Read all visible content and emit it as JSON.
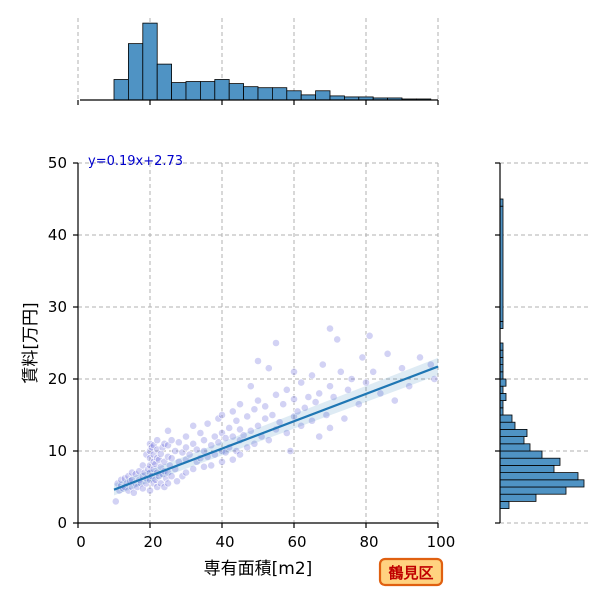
{
  "chart_data": {
    "type": "scatter",
    "title": "",
    "xlabel": "専有面積[m2]",
    "ylabel": "賃料[万円]",
    "xlim": [
      0,
      100
    ],
    "ylim": [
      0,
      50
    ],
    "xticks": [
      0,
      20,
      40,
      60,
      80,
      100
    ],
    "yticks": [
      0,
      10,
      20,
      30,
      40,
      50
    ],
    "grid": true,
    "regression": {
      "equation": "y=0.19x+2.73",
      "slope": 0.19,
      "intercept": 2.73,
      "x_range": [
        10,
        100
      ]
    },
    "ward_label": "鶴見区",
    "colors": {
      "points": "#5c5cd6",
      "regression": "#1f77b4",
      "hist": "#4f93c4",
      "equation": "#0000cc",
      "badge_fill": "#ffd280",
      "badge_border": "#e06010",
      "badge_text": "#c00000"
    },
    "points": [
      [
        10.5,
        3.0
      ],
      [
        11,
        5.5
      ],
      [
        11.5,
        4.5
      ],
      [
        12,
        5.2
      ],
      [
        12,
        6.0
      ],
      [
        12.5,
        4.8
      ],
      [
        13,
        5.0
      ],
      [
        13,
        6.2
      ],
      [
        13.5,
        5.5
      ],
      [
        14,
        4.5
      ],
      [
        14,
        6.5
      ],
      [
        14.5,
        5.8
      ],
      [
        15,
        5.0
      ],
      [
        15,
        6.0
      ],
      [
        15,
        7.0
      ],
      [
        15.5,
        4.2
      ],
      [
        16,
        5.5
      ],
      [
        16,
        6.8
      ],
      [
        16.5,
        5.0
      ],
      [
        17,
        6.0
      ],
      [
        17,
        7.2
      ],
      [
        17.5,
        5.5
      ],
      [
        18,
        4.8
      ],
      [
        18,
        6.5
      ],
      [
        18,
        8.0
      ],
      [
        18.5,
        7.0
      ],
      [
        19,
        5.5
      ],
      [
        19,
        6.2
      ],
      [
        19,
        9.5
      ],
      [
        19.5,
        7.5
      ],
      [
        20,
        4.5
      ],
      [
        20,
        6.0
      ],
      [
        20,
        7.0
      ],
      [
        20,
        8.0
      ],
      [
        20,
        9.0
      ],
      [
        20,
        10.0
      ],
      [
        20,
        11.0
      ],
      [
        20.5,
        6.5
      ],
      [
        20.5,
        10.5
      ],
      [
        21,
        5.5
      ],
      [
        21,
        7.5
      ],
      [
        21,
        8.5
      ],
      [
        21,
        9.5
      ],
      [
        21,
        10.8
      ],
      [
        21.5,
        6.0
      ],
      [
        21.5,
        8.2
      ],
      [
        22,
        5.0
      ],
      [
        22,
        7.0
      ],
      [
        22,
        9.0
      ],
      [
        22,
        10.2
      ],
      [
        22,
        11.5
      ],
      [
        22.5,
        6.5
      ],
      [
        22.5,
        8.8
      ],
      [
        23,
        5.5
      ],
      [
        23,
        7.8
      ],
      [
        23,
        9.6
      ],
      [
        23.5,
        6.8
      ],
      [
        23.5,
        10.5
      ],
      [
        24,
        5.0
      ],
      [
        24,
        7.2
      ],
      [
        24,
        8.5
      ],
      [
        24,
        11.0
      ],
      [
        24.5,
        6.2
      ],
      [
        25,
        5.5
      ],
      [
        25,
        7.0
      ],
      [
        25,
        9.2
      ],
      [
        25,
        10.8
      ],
      [
        25,
        12.8
      ],
      [
        25.5,
        8.0
      ],
      [
        26,
        6.5
      ],
      [
        26,
        9.0
      ],
      [
        26,
        11.5
      ],
      [
        27,
        7.5
      ],
      [
        27,
        10.0
      ],
      [
        27.5,
        5.8
      ],
      [
        28,
        8.5
      ],
      [
        28,
        11.2
      ],
      [
        29,
        6.5
      ],
      [
        29,
        9.8
      ],
      [
        30,
        7.0
      ],
      [
        30,
        8.8
      ],
      [
        30,
        10.5
      ],
      [
        30,
        12.0
      ],
      [
        31,
        9.5
      ],
      [
        32,
        7.5
      ],
      [
        32,
        11.0
      ],
      [
        32,
        13.5
      ],
      [
        33,
        8.5
      ],
      [
        33,
        10.2
      ],
      [
        34,
        9.0
      ],
      [
        34,
        12.5
      ],
      [
        35,
        7.8
      ],
      [
        35,
        10.0
      ],
      [
        35,
        11.5
      ],
      [
        36,
        9.2
      ],
      [
        36,
        13.8
      ],
      [
        37,
        8.0
      ],
      [
        37,
        10.8
      ],
      [
        38,
        9.5
      ],
      [
        38,
        12.0
      ],
      [
        39,
        11.2
      ],
      [
        39,
        14.5
      ],
      [
        40,
        8.5
      ],
      [
        40,
        10.0
      ],
      [
        40,
        12.5
      ],
      [
        40,
        15.0
      ],
      [
        41,
        9.8
      ],
      [
        41,
        11.8
      ],
      [
        42,
        10.5
      ],
      [
        42,
        13.2
      ],
      [
        43,
        8.8
      ],
      [
        43,
        12.0
      ],
      [
        43,
        15.5
      ],
      [
        44,
        10.0
      ],
      [
        44,
        14.2
      ],
      [
        45,
        9.5
      ],
      [
        45,
        11.5
      ],
      [
        45,
        13.0
      ],
      [
        45,
        16.5
      ],
      [
        46,
        12.2
      ],
      [
        47,
        10.5
      ],
      [
        47,
        14.8
      ],
      [
        48,
        12.8
      ],
      [
        48,
        19.0
      ],
      [
        49,
        11.0
      ],
      [
        49,
        15.8
      ],
      [
        50,
        13.5
      ],
      [
        50,
        17.0
      ],
      [
        50,
        22.5
      ],
      [
        51,
        12.0
      ],
      [
        52,
        14.5
      ],
      [
        52,
        16.2
      ],
      [
        53,
        11.5
      ],
      [
        53,
        21.5
      ],
      [
        54,
        15.0
      ],
      [
        55,
        13.0
      ],
      [
        55,
        17.8
      ],
      [
        55,
        25.0
      ],
      [
        56,
        14.0
      ],
      [
        57,
        16.5
      ],
      [
        58,
        12.5
      ],
      [
        58,
        18.5
      ],
      [
        59,
        10.0
      ],
      [
        60,
        14.8
      ],
      [
        60,
        17.2
      ],
      [
        60,
        21.0
      ],
      [
        61,
        15.5
      ],
      [
        62,
        13.5
      ],
      [
        62,
        19.5
      ],
      [
        63,
        16.0
      ],
      [
        64,
        17.5
      ],
      [
        65,
        14.2
      ],
      [
        65,
        20.5
      ],
      [
        66,
        16.8
      ],
      [
        67,
        12.0
      ],
      [
        67,
        18.0
      ],
      [
        68,
        22.0
      ],
      [
        69,
        15.0
      ],
      [
        70,
        13.2
      ],
      [
        70,
        19.0
      ],
      [
        70,
        27.0
      ],
      [
        71,
        17.5
      ],
      [
        72,
        25.5
      ],
      [
        73,
        21.0
      ],
      [
        74,
        14.5
      ],
      [
        75,
        18.5
      ],
      [
        76,
        20.0
      ],
      [
        78,
        16.5
      ],
      [
        79,
        23.0
      ],
      [
        80,
        19.5
      ],
      [
        81,
        26.0
      ],
      [
        82,
        21.0
      ],
      [
        84,
        18.0
      ],
      [
        86,
        23.5
      ],
      [
        88,
        17.0
      ],
      [
        90,
        21.5
      ],
      [
        92,
        19.0
      ],
      [
        95,
        23.0
      ],
      [
        98,
        22.0
      ],
      [
        99,
        20.0
      ]
    ],
    "top_histogram": {
      "bin_edges": [
        10,
        14,
        18,
        22,
        26,
        30,
        34,
        38,
        42,
        46,
        50,
        54,
        58,
        62,
        66,
        70,
        74,
        78,
        82,
        86,
        90,
        94,
        98
      ],
      "counts": [
        20,
        55,
        75,
        35,
        17,
        18,
        18,
        20,
        16,
        13,
        12,
        12,
        9,
        5,
        9,
        4,
        3,
        3,
        2,
        2,
        1,
        1
      ]
    },
    "right_histogram": {
      "bin_edges": [
        2,
        3,
        4,
        5,
        6,
        7,
        8,
        9,
        10,
        11,
        12,
        13,
        14,
        15,
        16,
        17,
        18,
        19,
        20,
        21,
        22,
        23,
        24,
        25,
        26,
        27,
        28,
        44,
        45
      ],
      "counts": [
        3,
        12,
        22,
        28,
        26,
        18,
        20,
        14,
        10,
        8,
        9,
        5,
        4,
        1,
        1,
        2,
        1,
        2,
        1,
        1,
        1,
        1,
        1,
        0,
        0,
        1,
        1,
        1
      ]
    }
  }
}
